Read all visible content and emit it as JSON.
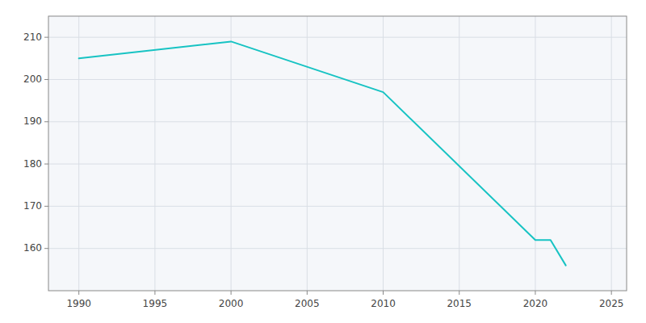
{
  "chart_data": {
    "type": "line",
    "x": [
      1990,
      2000,
      2010,
      2020,
      2021,
      2022
    ],
    "values": [
      205,
      209,
      197,
      162,
      162,
      156
    ],
    "color": "#17C3C3",
    "xlim": [
      1988,
      2026
    ],
    "ylim": [
      150,
      215
    ],
    "xticks": [
      1990,
      1995,
      2000,
      2005,
      2010,
      2015,
      2020,
      2025
    ],
    "yticks": [
      160,
      170,
      180,
      190,
      200,
      210
    ],
    "grid": true
  }
}
